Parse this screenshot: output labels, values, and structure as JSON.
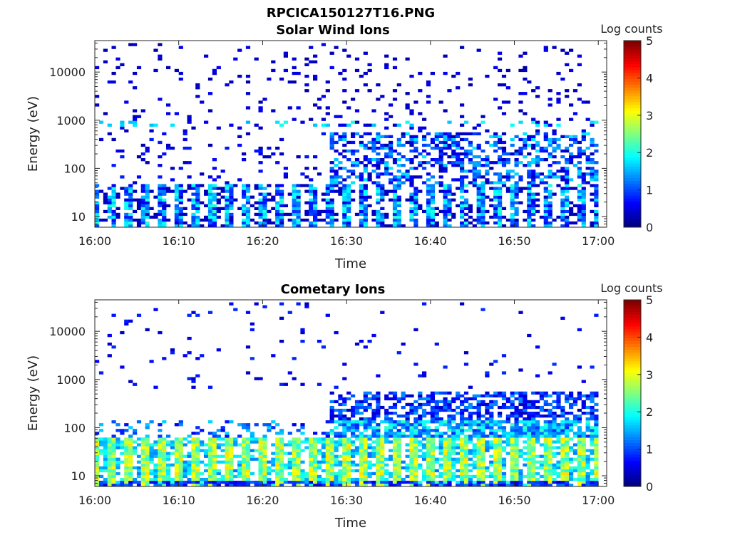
{
  "figure": {
    "filename_title": "RPCICA150127T16.PNG"
  },
  "chart_data": [
    {
      "type": "heatmap",
      "title": "Solar Wind Ions",
      "xlabel": "Time",
      "ylabel": "Energy (eV)",
      "x_ticks": [
        "16:00",
        "16:10",
        "16:20",
        "16:30",
        "16:40",
        "16:50",
        "17:00"
      ],
      "x_range_minutes": [
        0,
        61
      ],
      "y_scale": "log",
      "y_ticks": [
        "10",
        "100",
        "1000",
        "10000"
      ],
      "y_range_eV": [
        6,
        45000
      ],
      "colorbar": {
        "label": "Log counts",
        "ticks": [
          "0",
          "1",
          "2",
          "3",
          "4",
          "5"
        ],
        "range": [
          0,
          5
        ],
        "colormap": "jet"
      },
      "pattern": "sparse",
      "scans": 60
    },
    {
      "type": "heatmap",
      "title": "Cometary Ions",
      "xlabel": "Time",
      "ylabel": "Energy (eV)",
      "x_ticks": [
        "16:00",
        "16:10",
        "16:20",
        "16:30",
        "16:40",
        "16:50",
        "17:00"
      ],
      "x_range_minutes": [
        0,
        61
      ],
      "y_scale": "log",
      "y_ticks": [
        "10",
        "100",
        "1000",
        "10000"
      ],
      "y_range_eV": [
        6,
        45000
      ],
      "colorbar": {
        "label": "Log counts",
        "ticks": [
          "0",
          "1",
          "2",
          "3",
          "4",
          "5"
        ],
        "range": [
          0,
          5
        ],
        "colormap": "jet"
      },
      "pattern": "dense",
      "scans": 60
    }
  ]
}
